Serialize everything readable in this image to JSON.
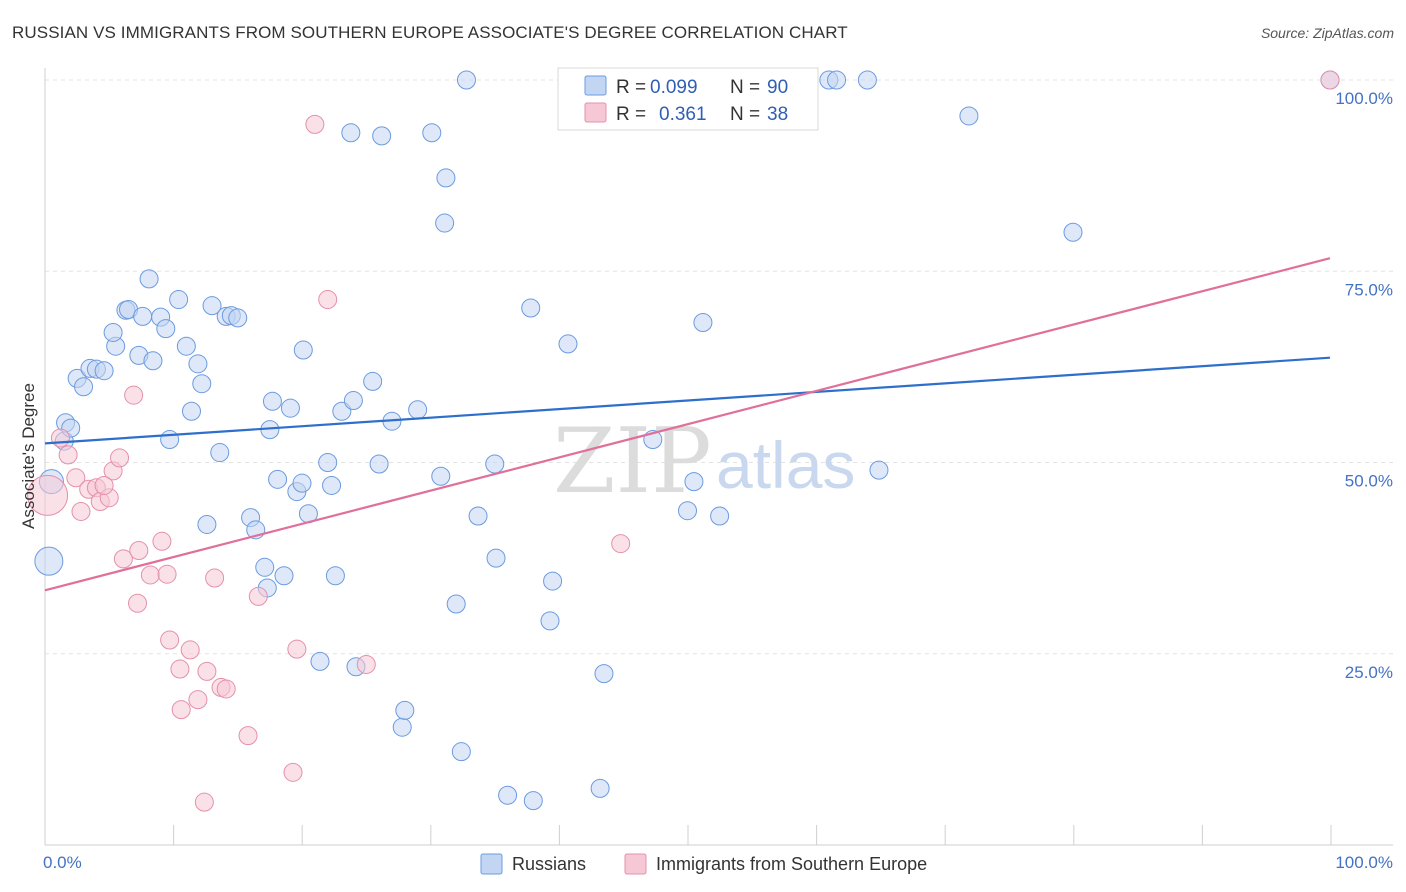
{
  "title": "RUSSIAN VS IMMIGRANTS FROM SOUTHERN EUROPE ASSOCIATE'S DEGREE CORRELATION CHART",
  "source": "Source: ZipAtlas.com",
  "watermark": {
    "zip": "ZIP",
    "atlas": "atlas"
  },
  "chart_data": {
    "type": "scatter",
    "xlabel": "",
    "ylabel": "Associate's Degree",
    "xlim": [
      0,
      100
    ],
    "ylim": [
      0,
      100
    ],
    "x_tick_labels": {
      "left": "0.0%",
      "right": "100.0%"
    },
    "y_ticks": [
      {
        "value": 25,
        "label": "25.0%"
      },
      {
        "value": 50,
        "label": "50.0%"
      },
      {
        "value": 75,
        "label": "75.0%"
      },
      {
        "value": 100,
        "label": "100.0%"
      }
    ],
    "grid": true,
    "legend_top": [
      {
        "series": "Russians",
        "r_label": "R =",
        "r_value": "0.099",
        "n_label": "N =",
        "n_value": "90"
      },
      {
        "series": "Immigrants from Southern Europe",
        "r_label": "R =",
        "r_value": "0.361",
        "n_label": "N =",
        "n_value": "38"
      }
    ],
    "series": [
      {
        "name": "Russians",
        "color": "#6b9be0",
        "fill": "#c2d6f3",
        "trend_color": "#2f6fcc",
        "trend": {
          "x0": 0,
          "y0": 52.5,
          "x1": 100,
          "y1": 63.7
        },
        "points": [
          [
            0.3,
            37.1,
            14
          ],
          [
            0.5,
            47.5,
            12
          ],
          [
            1.5,
            52.8,
            9
          ],
          [
            1.6,
            55.2,
            9
          ],
          [
            2.0,
            54.5,
            9
          ],
          [
            2.5,
            61.0,
            9
          ],
          [
            3.0,
            59.9,
            9
          ],
          [
            3.5,
            62.3,
            9
          ],
          [
            4.0,
            62.2,
            9
          ],
          [
            4.6,
            62.0,
            9
          ],
          [
            5.5,
            65.2,
            9
          ],
          [
            5.3,
            67.0,
            9
          ],
          [
            6.3,
            69.9,
            9
          ],
          [
            6.5,
            70.0,
            9
          ],
          [
            7.3,
            64.0,
            9
          ],
          [
            7.6,
            69.1,
            9
          ],
          [
            8.1,
            74.0,
            9
          ],
          [
            8.4,
            63.3,
            9
          ],
          [
            9.0,
            69.0,
            9
          ],
          [
            9.4,
            67.5,
            9
          ],
          [
            9.7,
            53.0,
            9
          ],
          [
            10.4,
            71.3,
            9
          ],
          [
            11.0,
            65.2,
            9
          ],
          [
            11.4,
            56.7,
            9
          ],
          [
            11.9,
            62.9,
            9
          ],
          [
            12.2,
            60.3,
            9
          ],
          [
            12.6,
            41.9,
            9
          ],
          [
            13.0,
            70.5,
            9
          ],
          [
            13.6,
            51.3,
            9
          ],
          [
            14.1,
            69.1,
            9
          ],
          [
            14.5,
            69.2,
            9
          ],
          [
            15.0,
            68.9,
            9
          ],
          [
            16.0,
            42.8,
            9
          ],
          [
            16.4,
            41.2,
            9
          ],
          [
            17.1,
            36.3,
            9
          ],
          [
            17.3,
            33.6,
            9
          ],
          [
            17.5,
            54.3,
            9
          ],
          [
            17.7,
            58.0,
            9
          ],
          [
            18.1,
            47.8,
            9
          ],
          [
            18.6,
            35.2,
            9
          ],
          [
            19.1,
            57.1,
            9
          ],
          [
            19.6,
            46.2,
            9
          ],
          [
            20.0,
            47.3,
            9
          ],
          [
            20.1,
            64.7,
            9
          ],
          [
            20.5,
            43.3,
            9
          ],
          [
            21.4,
            24.0,
            9
          ],
          [
            22.0,
            50.0,
            9
          ],
          [
            22.3,
            47.0,
            9
          ],
          [
            22.6,
            35.2,
            9
          ],
          [
            23.1,
            56.7,
            9
          ],
          [
            23.8,
            93.1,
            9
          ],
          [
            24.0,
            58.1,
            9
          ],
          [
            24.2,
            23.3,
            9
          ],
          [
            25.5,
            60.6,
            9
          ],
          [
            26.0,
            49.8,
            9
          ],
          [
            26.2,
            92.7,
            9
          ],
          [
            27.0,
            55.4,
            9
          ],
          [
            27.8,
            15.4,
            9
          ],
          [
            28.0,
            17.6,
            9
          ],
          [
            29.0,
            56.9,
            9
          ],
          [
            30.1,
            93.1,
            9
          ],
          [
            30.8,
            48.2,
            9
          ],
          [
            31.2,
            87.2,
            9
          ],
          [
            31.1,
            81.3,
            9
          ],
          [
            32.0,
            31.5,
            9
          ],
          [
            32.4,
            12.2,
            9
          ],
          [
            32.8,
            100.0,
            9
          ],
          [
            33.7,
            43.0,
            9
          ],
          [
            35.0,
            49.8,
            9
          ],
          [
            35.1,
            37.5,
            9
          ],
          [
            36.0,
            6.5,
            9
          ],
          [
            37.8,
            70.2,
            9
          ],
          [
            38.0,
            5.8,
            9
          ],
          [
            39.3,
            29.3,
            9
          ],
          [
            39.5,
            34.5,
            9
          ],
          [
            40.7,
            65.5,
            9
          ],
          [
            43.2,
            7.4,
            9
          ],
          [
            43.5,
            22.4,
            9
          ],
          [
            47.3,
            53.0,
            9
          ],
          [
            50.0,
            43.7,
            9
          ],
          [
            50.5,
            47.5,
            9
          ],
          [
            51.2,
            68.3,
            9
          ],
          [
            52.5,
            43.0,
            9
          ],
          [
            61.0,
            100.0,
            9
          ],
          [
            61.6,
            100.0,
            9
          ],
          [
            64.0,
            100.0,
            9
          ],
          [
            64.9,
            49.0,
            9
          ],
          [
            71.9,
            95.3,
            9
          ],
          [
            80.0,
            80.1,
            9
          ],
          [
            100.0,
            100.0,
            9
          ]
        ]
      },
      {
        "name": "Immigrants from Southern Europe",
        "color": "#e590ab",
        "fill": "#f6c8d6",
        "trend_color": "#e0709a",
        "trend": {
          "x0": 0,
          "y0": 33.3,
          "x1": 100,
          "y1": 76.7
        },
        "points": [
          [
            0.2,
            45.7,
            20
          ],
          [
            1.2,
            53.2,
            9
          ],
          [
            1.8,
            51.0,
            9
          ],
          [
            2.4,
            48.0,
            9
          ],
          [
            2.8,
            43.6,
            9
          ],
          [
            3.4,
            46.5,
            9
          ],
          [
            4.0,
            46.7,
            9
          ],
          [
            4.3,
            44.9,
            9
          ],
          [
            5.0,
            45.4,
            9
          ],
          [
            5.3,
            48.9,
            9
          ],
          [
            5.8,
            50.6,
            9
          ],
          [
            6.1,
            37.4,
            9
          ],
          [
            6.9,
            58.8,
            9
          ],
          [
            7.3,
            38.5,
            9
          ],
          [
            8.2,
            35.3,
            9
          ],
          [
            9.1,
            39.7,
            9
          ],
          [
            9.5,
            35.4,
            9
          ],
          [
            9.7,
            26.8,
            9
          ],
          [
            10.5,
            23.0,
            9
          ],
          [
            10.6,
            17.7,
            9
          ],
          [
            11.3,
            25.5,
            9
          ],
          [
            11.9,
            19.0,
            9
          ],
          [
            12.4,
            5.6,
            9
          ],
          [
            12.6,
            22.7,
            9
          ],
          [
            13.2,
            34.9,
            9
          ],
          [
            13.7,
            20.6,
            9
          ],
          [
            14.1,
            20.4,
            9
          ],
          [
            15.8,
            14.3,
            9
          ],
          [
            16.6,
            32.5,
            9
          ],
          [
            19.3,
            9.5,
            9
          ],
          [
            19.6,
            25.6,
            9
          ],
          [
            21.0,
            94.2,
            9
          ],
          [
            22.0,
            71.3,
            9
          ],
          [
            25.0,
            23.6,
            9
          ],
          [
            7.2,
            31.6,
            9
          ],
          [
            44.8,
            39.4,
            9
          ],
          [
            100.0,
            100.0,
            9
          ],
          [
            4.6,
            47.0,
            9
          ]
        ]
      }
    ]
  }
}
